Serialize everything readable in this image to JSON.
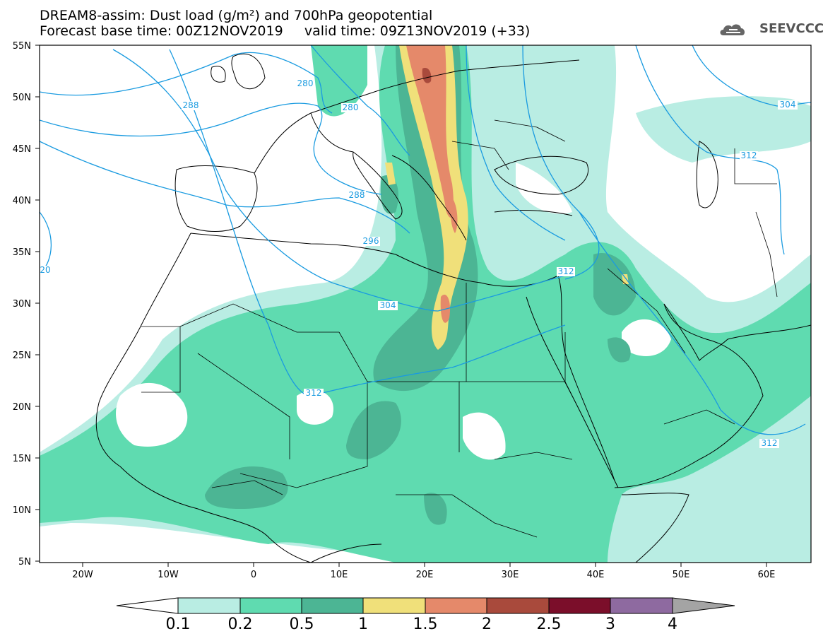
{
  "header": {
    "title_line1": "DREAM8-assim: Dust load (g/m²) and 700hPa geopotential",
    "title_line2": "Forecast base time: 00Z12NOV2019     valid time: 09Z13NOV2019 (+33)",
    "logo_text": "SEEVCCC"
  },
  "axes": {
    "lat_labels": [
      "55N",
      "50N",
      "45N",
      "40N",
      "35N",
      "30N",
      "25N",
      "20N",
      "15N",
      "10N",
      "5N"
    ],
    "lon_labels": [
      "20W",
      "10W",
      "0",
      "10E",
      "20E",
      "30E",
      "40E",
      "50E",
      "60E"
    ]
  },
  "contours": {
    "labels": [
      "280",
      "280",
      "288",
      "288",
      "296",
      "304",
      "312",
      "312",
      "312",
      "312",
      "304",
      "20"
    ],
    "color": "#1a9be0"
  },
  "colorbar": {
    "labels": [
      "0.1",
      "0.2",
      "0.5",
      "1",
      "1.5",
      "2",
      "2.5",
      "3",
      "4"
    ],
    "colors": [
      "#ffffff",
      "#b9ede3",
      "#5fdbb0",
      "#4cb594",
      "#f0e07a",
      "#e5896a",
      "#a94a3c",
      "#7b0e2a",
      "#8e6aa0",
      "#a4a4a4"
    ]
  },
  "colors": {
    "land_outline": "#000000",
    "dust_01": "#b9ede3",
    "dust_02": "#5fdbb0",
    "dust_05": "#4cb594",
    "dust_1": "#f0e07a",
    "dust_15": "#e5896a",
    "dust_2": "#a94a3c"
  }
}
